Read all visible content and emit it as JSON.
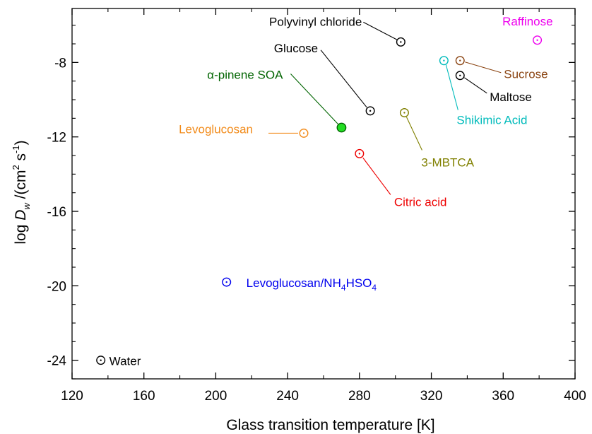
{
  "chart_data": {
    "type": "scatter",
    "xlabel": "Glass transition temperature [K]",
    "ylabel": {
      "prefix": "log ",
      "symbol": "D",
      "sub": "w",
      "mid": " /(cm",
      "sup1": "2",
      "mid2": " s",
      "sup2": "-1",
      "suffix": ")"
    },
    "xlim": [
      120,
      400
    ],
    "ylim": [
      -25,
      -5.1
    ],
    "xticks": [
      120,
      160,
      200,
      240,
      280,
      320,
      360,
      400
    ],
    "yticks": [
      -24,
      -20,
      -16,
      -12,
      -8
    ],
    "grid": false,
    "points": [
      {
        "name": "Water",
        "x": 136,
        "y": -24.0,
        "color": "#000000",
        "filled": false,
        "label": {
          "parts": [
            {
              "t": "Water"
            }
          ],
          "anchor": "start"
        }
      },
      {
        "name": "Levoglucosan/NH4HSO4",
        "x": 206,
        "y": -19.8,
        "color": "#0000ee",
        "filled": false,
        "label": {
          "parts": [
            {
              "t": "Levoglucosan/NH"
            },
            {
              "t": "4",
              "sub": true
            },
            {
              "t": "HSO"
            },
            {
              "t": "4",
              "sub": true
            }
          ],
          "anchor": "start"
        }
      },
      {
        "name": "Levoglucosan",
        "x": 249,
        "y": -11.8,
        "color": "#f28c1c",
        "filled": false,
        "label": {
          "parts": [
            {
              "t": "Levoglucosan"
            }
          ],
          "anchor": "end"
        }
      },
      {
        "name": "α-pinene SOA",
        "x": 270,
        "y": -11.5,
        "color": "#006400",
        "fill": "#22dd22",
        "filled": true,
        "label": {
          "parts": [
            {
              "t": "α-pinene SOA"
            }
          ],
          "anchor": "end"
        }
      },
      {
        "name": "Citric acid",
        "x": 280,
        "y": -12.9,
        "color": "#ee0000",
        "filled": false,
        "label": {
          "parts": [
            {
              "t": "Citric acid"
            }
          ],
          "anchor": "start"
        }
      },
      {
        "name": "Glucose",
        "x": 286,
        "y": -10.6,
        "color": "#000000",
        "filled": false,
        "label": {
          "parts": [
            {
              "t": "Glucose"
            }
          ],
          "anchor": "end"
        }
      },
      {
        "name": "Polyvinyl chloride",
        "x": 303,
        "y": -6.9,
        "color": "#000000",
        "filled": false,
        "label": {
          "parts": [
            {
              "t": "Polyvinyl chloride"
            }
          ],
          "anchor": "end"
        }
      },
      {
        "name": "3-MBTCA",
        "x": 305,
        "y": -10.7,
        "color": "#808000",
        "filled": false,
        "label": {
          "parts": [
            {
              "t": "3-MBTCA"
            }
          ],
          "anchor": "start"
        }
      },
      {
        "name": "Shikimic Acid",
        "x": 327,
        "y": -7.9,
        "color": "#00bbbb",
        "filled": false,
        "label": {
          "parts": [
            {
              "t": "Shikimic Acid"
            }
          ],
          "anchor": "start"
        }
      },
      {
        "name": "Sucrose",
        "x": 336,
        "y": -7.9,
        "color": "#8b4513",
        "filled": false,
        "label": {
          "parts": [
            {
              "t": "Sucrose"
            }
          ],
          "anchor": "start"
        }
      },
      {
        "name": "Maltose",
        "x": 336,
        "y": -8.7,
        "color": "#000000",
        "filled": false,
        "label": {
          "parts": [
            {
              "t": "Maltose"
            }
          ],
          "anchor": "start"
        }
      },
      {
        "name": "Raffinose",
        "x": 379,
        "y": -6.8,
        "color": "#ee00ee",
        "filled": false,
        "label": {
          "parts": [
            {
              "t": "Raffinose"
            }
          ],
          "anchor": "end"
        }
      }
    ]
  }
}
